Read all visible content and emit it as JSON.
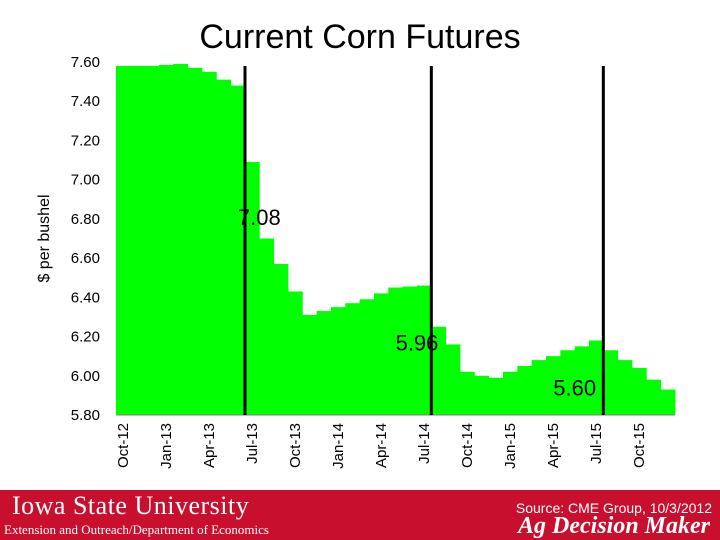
{
  "title": "Current Corn Futures",
  "chart_data": {
    "type": "bar",
    "title": "Current Corn Futures",
    "xlabel": "",
    "ylabel": "$ per bushel",
    "ylim": [
      5.8,
      7.6
    ],
    "yticks": [
      "7.60",
      "7.40",
      "7.20",
      "7.00",
      "6.80",
      "6.60",
      "6.40",
      "6.20",
      "6.00",
      "5.80"
    ],
    "xtick_labels": [
      "Oct-12",
      "Jan-13",
      "Apr-13",
      "Jul-13",
      "Oct-13",
      "Jan-14",
      "Apr-14",
      "Jul-14",
      "Oct-14",
      "Jan-15",
      "Apr-15",
      "Jul-15",
      "Oct-15"
    ],
    "color": "#00ff00",
    "values": [
      7.58,
      7.58,
      7.58,
      7.585,
      7.59,
      7.57,
      7.55,
      7.51,
      7.48,
      7.09,
      6.7,
      6.57,
      6.43,
      6.31,
      6.33,
      6.35,
      6.37,
      6.39,
      6.42,
      6.45,
      6.455,
      6.46,
      6.25,
      6.16,
      6.02,
      6.0,
      5.99,
      6.02,
      6.05,
      6.08,
      6.1,
      6.13,
      6.15,
      6.18,
      6.13,
      6.08,
      6.04,
      5.98,
      5.93
    ],
    "dividers_after_bar": [
      9,
      22,
      34
    ],
    "annotations": [
      {
        "text": "7.08",
        "x_bar": 10,
        "y": 6.77
      },
      {
        "text": "5.96",
        "x_bar": 21,
        "y": 6.13
      },
      {
        "text": "5.60",
        "x_bar": 32,
        "y": 5.9
      }
    ],
    "grid": false,
    "legend": "none"
  },
  "footer": {
    "university": "Iowa State University",
    "subtitle": "Extension and Outreach/Department of Economics",
    "brand": "Ag Decision Maker",
    "source": "Source: CME Group, 10/3/2012"
  },
  "colors": {
    "bar": "#00ff00",
    "footer": "#c8102e",
    "divider": "#000000"
  }
}
